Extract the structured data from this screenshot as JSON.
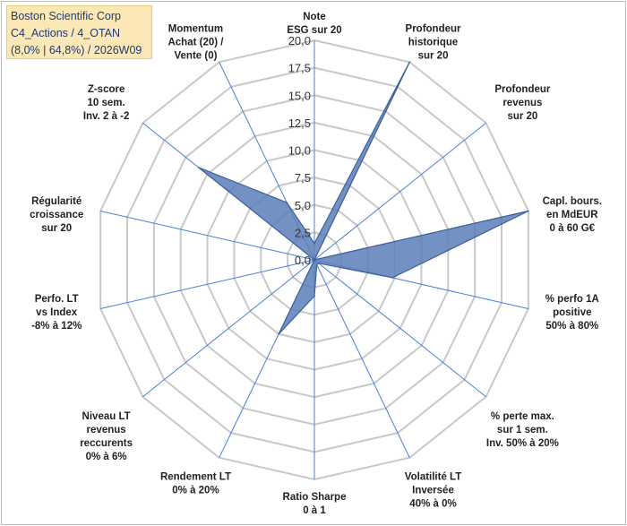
{
  "info_box": {
    "line1": "Boston Scientific Corp",
    "line2": "C4_Actions / 4_OTAN",
    "line3": "(8,0% | 64,8%) / 2026W09"
  },
  "colors": {
    "grid": "#c8c8c8",
    "spoke": "#4a7fd6",
    "fill": "#5b7fb8",
    "stroke": "#3c5f99",
    "info_bg": "#fce8b7",
    "info_text": "#1f3a6e"
  },
  "chart_data": {
    "type": "radar",
    "rmin": 0,
    "rmax": 20,
    "ticks": [
      "0,0",
      "2,5",
      "5,0",
      "7,5",
      "10,0",
      "12,5",
      "15,0",
      "17,5",
      "20,0"
    ],
    "tick_values": [
      0,
      2.5,
      5,
      7.5,
      10,
      12.5,
      15,
      17.5,
      20
    ],
    "axes": [
      {
        "lines": [
          "Note",
          "ESG sur 20"
        ],
        "value": 1.5
      },
      {
        "lines": [
          "Profondeur",
          "historique",
          "sur 20"
        ],
        "value": 20
      },
      {
        "lines": [
          "Profondeur",
          "revenus",
          "sur 20"
        ],
        "value": 0
      },
      {
        "lines": [
          "Capl. bours.",
          "en MdEUR",
          "0 à 60 G€"
        ],
        "value": 20
      },
      {
        "lines": [
          "% perfo 1A",
          "positive",
          "50% à 80%"
        ],
        "value": 7.3
      },
      {
        "lines": [
          "% perte max.",
          "sur 1 sem.",
          "Inv. 50% à 20%"
        ],
        "value": 0.5
      },
      {
        "lines": [
          "Volatilité LT",
          "Inversée",
          "40% à 0%"
        ],
        "value": 0.5
      },
      {
        "lines": [
          "Ratio Sharpe",
          "0 à 1"
        ],
        "value": 3.3
      },
      {
        "lines": [
          "Rendement LT",
          "0% à 20%"
        ],
        "value": 7.5
      },
      {
        "lines": [
          "Niveau LT",
          "revenus",
          "reccurents",
          "0% à 6%"
        ],
        "value": 0
      },
      {
        "lines": [
          "Perfo. LT",
          "vs Index",
          "-8% à 12%"
        ],
        "value": 0
      },
      {
        "lines": [
          "Régularité",
          "croissance",
          "sur 20"
        ],
        "value": 0
      },
      {
        "lines": [
          "Z-score",
          "10 sem.",
          "Inv. 2 à -2"
        ],
        "value": 13.5
      },
      {
        "lines": [
          "Momentum",
          "Achat (20) /",
          "Vente (0)"
        ],
        "value": 5.8
      }
    ]
  }
}
